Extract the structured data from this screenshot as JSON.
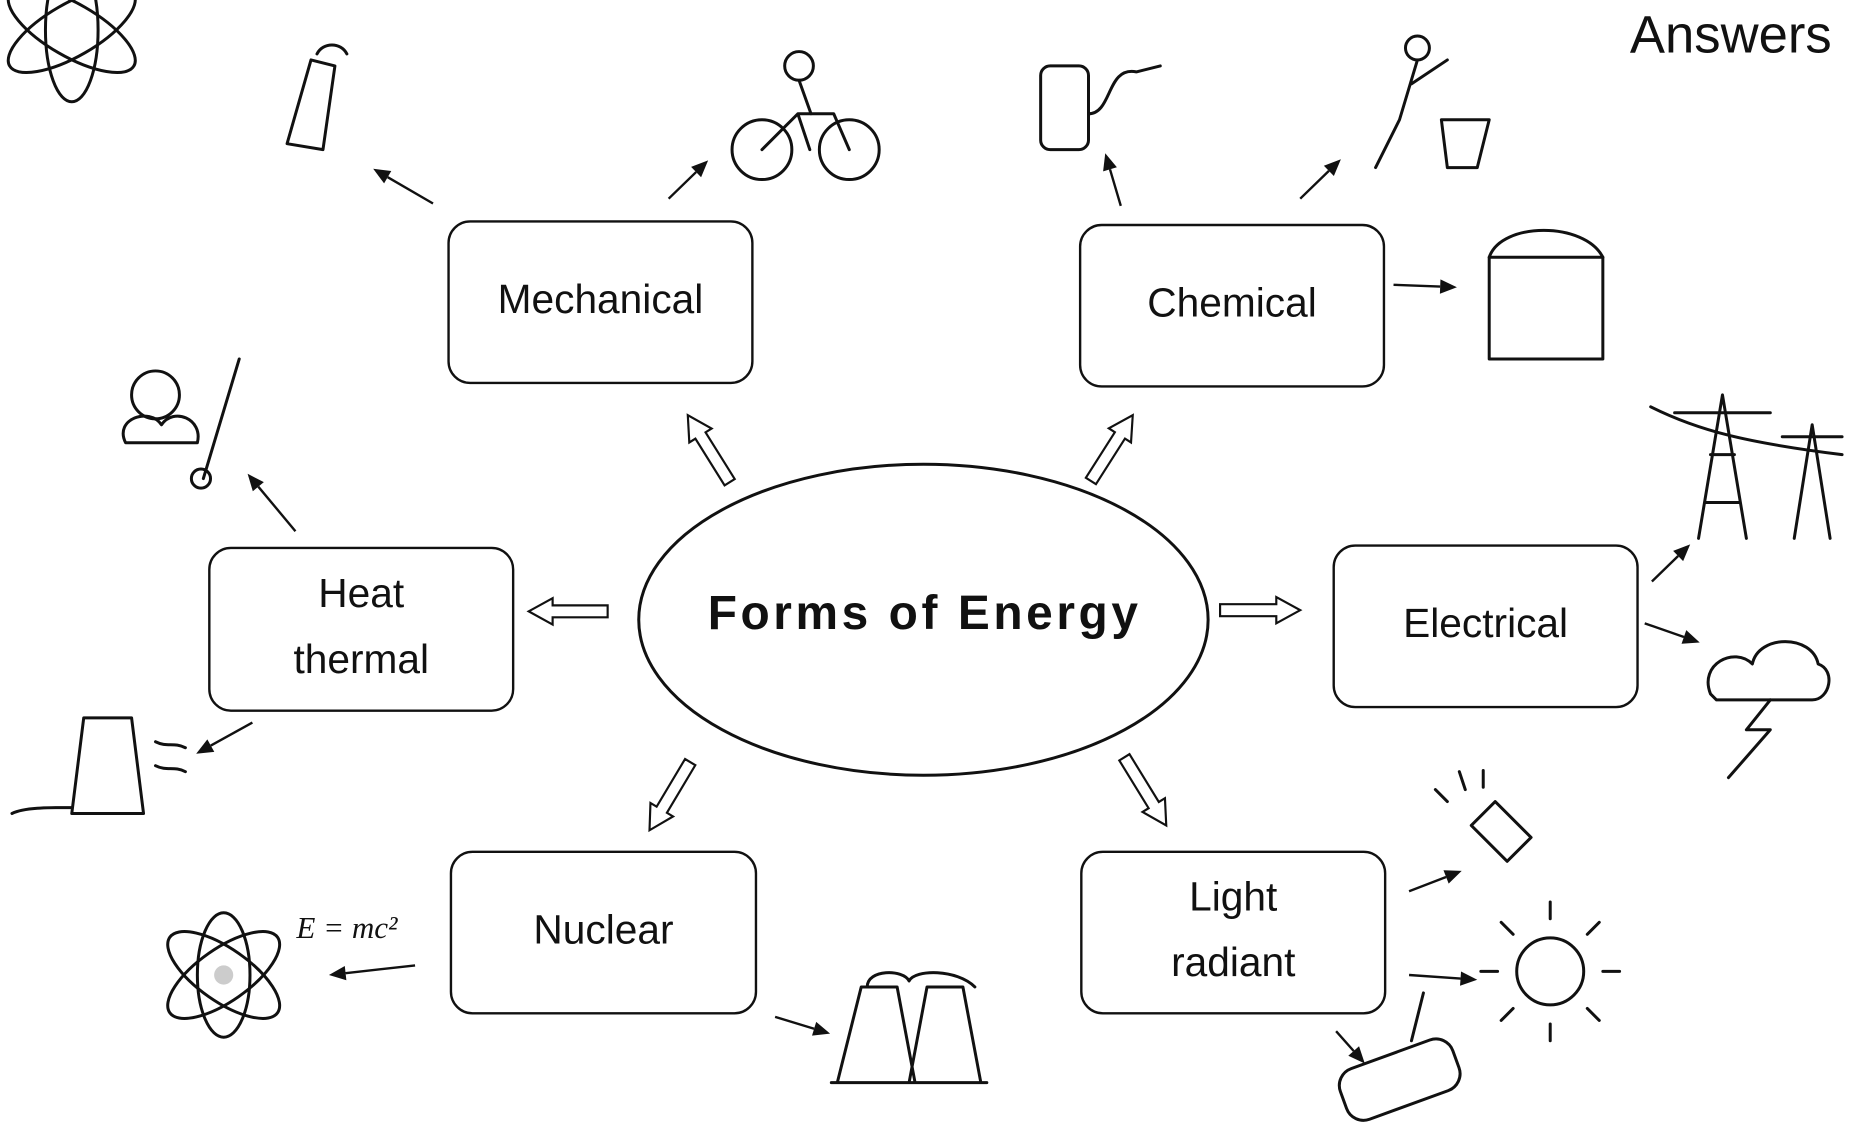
{
  "header": {
    "corner_label": "Answers"
  },
  "center": {
    "label": "Forms of Energy"
  },
  "nodes": [
    {
      "lines": [
        "Mechanical"
      ]
    },
    {
      "lines": [
        "Chemical"
      ]
    },
    {
      "lines": [
        "Heat",
        "thermal"
      ]
    },
    {
      "lines": [
        "Electrical"
      ]
    },
    {
      "lines": [
        "Nuclear"
      ]
    },
    {
      "lines": [
        "Light",
        "radiant"
      ]
    }
  ],
  "annotations": {
    "formula": "E = mc²"
  }
}
